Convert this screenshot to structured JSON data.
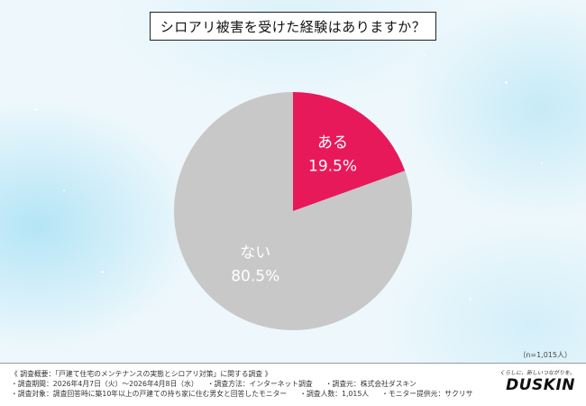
{
  "chart_data": {
    "type": "pie",
    "title": "シロアリ被害を受けた経験はありますか？",
    "categories": [
      "ある",
      "ない"
    ],
    "values": [
      19.5,
      80.5
    ],
    "value_labels": [
      "19.5%",
      "80.5%"
    ],
    "colors": [
      "#e8195b",
      "#c8c8c8"
    ],
    "label_colors": [
      "#ffffff",
      "#ffffff"
    ],
    "sample_note": "（n=1,015人）"
  },
  "footer": {
    "lines": [
      [
        "《 調査概要：「戸建て住宅のメンテナンスの実態とシロアリ対策」に関する調査 》"
      ],
      [
        "・調査期間：2026年4月7日（火）～2026年4月8日（水）",
        "・調査方法：インターネット調査",
        "・調査元：株式会社ダスキン"
      ],
      [
        "・調査対象：調査回答時に築10年以上の戸建ての持ち家に住む男女と回答したモニター",
        "・調査人数：1,015人",
        "・モニター提供元：サクリサ"
      ]
    ]
  },
  "brand": {
    "tagline": "くらしに、新しいつながりを。",
    "logo": "DUSKIN"
  }
}
